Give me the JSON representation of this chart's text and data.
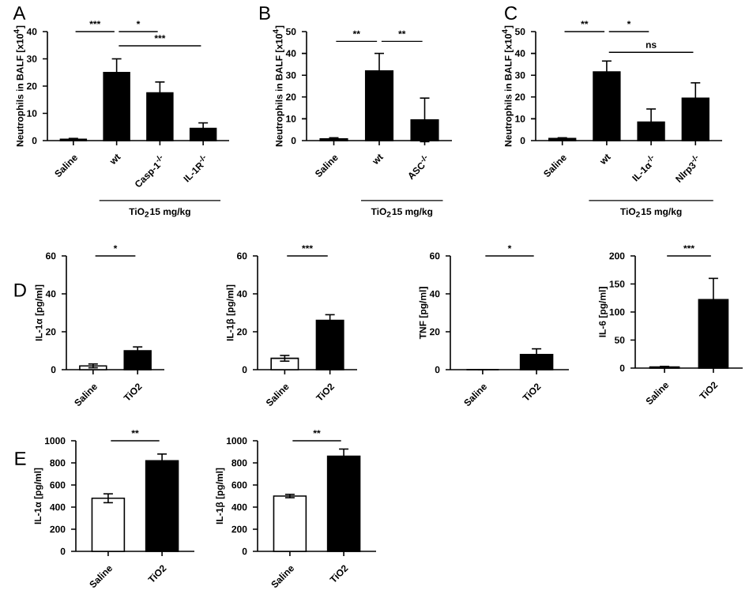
{
  "chart_data": [
    {
      "type": "bar",
      "ylabel": "Neutrophils in BALF [x10$^{4}$]",
      "categories": [
        "Saline",
        "wt",
        "Casp-1$^{-/-}$",
        "IL-1R$^{-/-}$"
      ],
      "values": [
        0.5,
        25,
        17.5,
        4.5
      ],
      "errors": [
        0.3,
        5,
        4,
        2
      ],
      "colors": [
        "#000000",
        "#000000",
        "#000000",
        "#000000"
      ],
      "ylim": [
        0,
        40
      ],
      "yticks": [
        0,
        10,
        20,
        30,
        40
      ],
      "annotations": [
        "A",
        "***",
        "*",
        "***",
        "TiO$_{2}$15 mg/kg"
      ]
    },
    {
      "type": "bar",
      "ylabel": "Neutrophils in BALF [x10$^{4}$]",
      "categories": [
        "Saline",
        "wt",
        "ASC$^{-/-}$"
      ],
      "values": [
        0.8,
        32,
        9.5
      ],
      "errors": [
        0.5,
        8,
        10
      ],
      "colors": [
        "#000000",
        "#000000",
        "#000000"
      ],
      "ylim": [
        0,
        50
      ],
      "yticks": [
        0,
        10,
        20,
        30,
        40,
        50
      ],
      "annotations": [
        "B",
        "**",
        "**",
        "TiO$_{2}$15 mg/kg"
      ]
    },
    {
      "type": "bar",
      "ylabel": "Neutrophils in BALF [x10$^{4}$]",
      "categories": [
        "Saline",
        "wt",
        "IL-1α$^{-/-}$",
        "Nlrp3$^{-/-}$"
      ],
      "values": [
        1,
        31.5,
        8.5,
        19.5
      ],
      "errors": [
        0.3,
        5,
        6,
        7
      ],
      "colors": [
        "#000000",
        "#000000",
        "#000000",
        "#000000"
      ],
      "ylim": [
        0,
        50
      ],
      "yticks": [
        0,
        10,
        20,
        30,
        40,
        50
      ],
      "annotations": [
        "C",
        "**",
        "*",
        "ns",
        "TiO$_{2}$15 mg/kg"
      ]
    },
    {
      "type": "bar",
      "ylabel": "IL-1α [pg/ml]",
      "categories": [
        "Saline",
        "TiO2"
      ],
      "values": [
        2,
        10
      ],
      "errors": [
        1,
        2
      ],
      "colors": [
        "#ffffff",
        "#000000"
      ],
      "ylim": [
        0,
        60
      ],
      "yticks": [
        0,
        20,
        40,
        60
      ],
      "annotations": [
        "D",
        "*"
      ]
    },
    {
      "type": "bar",
      "ylabel": "IL-1β [pg/ml]",
      "categories": [
        "Saline",
        "TiO2"
      ],
      "values": [
        6,
        26
      ],
      "errors": [
        1.5,
        3
      ],
      "colors": [
        "#ffffff",
        "#000000"
      ],
      "ylim": [
        0,
        60
      ],
      "yticks": [
        0,
        20,
        40,
        60
      ],
      "annotations": [
        "***"
      ]
    },
    {
      "type": "bar",
      "ylabel": "TNF [pg/ml]",
      "categories": [
        "Saline",
        "TiO2"
      ],
      "values": [
        0,
        8
      ],
      "errors": [
        0,
        3
      ],
      "colors": [
        "#ffffff",
        "#000000"
      ],
      "ylim": [
        0,
        60
      ],
      "yticks": [
        0,
        20,
        40,
        60
      ],
      "annotations": [
        "*"
      ]
    },
    {
      "type": "bar",
      "ylabel": "IL-6 [pg/ml]",
      "categories": [
        "Saline",
        "TiO2"
      ],
      "values": [
        2,
        122
      ],
      "errors": [
        1,
        38
      ],
      "colors": [
        "#ffffff",
        "#000000"
      ],
      "ylim": [
        0,
        200
      ],
      "yticks": [
        0,
        50,
        100,
        150,
        200
      ],
      "annotations": [
        "***"
      ]
    },
    {
      "type": "bar",
      "ylabel": "IL-1α [pg/ml]",
      "categories": [
        "Saline",
        "TiO2"
      ],
      "values": [
        480,
        820
      ],
      "errors": [
        40,
        60
      ],
      "colors": [
        "#ffffff",
        "#000000"
      ],
      "ylim": [
        0,
        1000
      ],
      "yticks": [
        0,
        200,
        400,
        600,
        800,
        1000
      ],
      "annotations": [
        "E",
        "**"
      ]
    },
    {
      "type": "bar",
      "ylabel": "IL-1β [pg/ml]",
      "categories": [
        "Saline",
        "TiO2"
      ],
      "values": [
        500,
        860
      ],
      "errors": [
        15,
        65
      ],
      "colors": [
        "#ffffff",
        "#000000"
      ],
      "ylim": [
        0,
        1000
      ],
      "yticks": [
        0,
        200,
        400,
        600,
        800,
        1000
      ],
      "annotations": [
        "**"
      ]
    }
  ]
}
